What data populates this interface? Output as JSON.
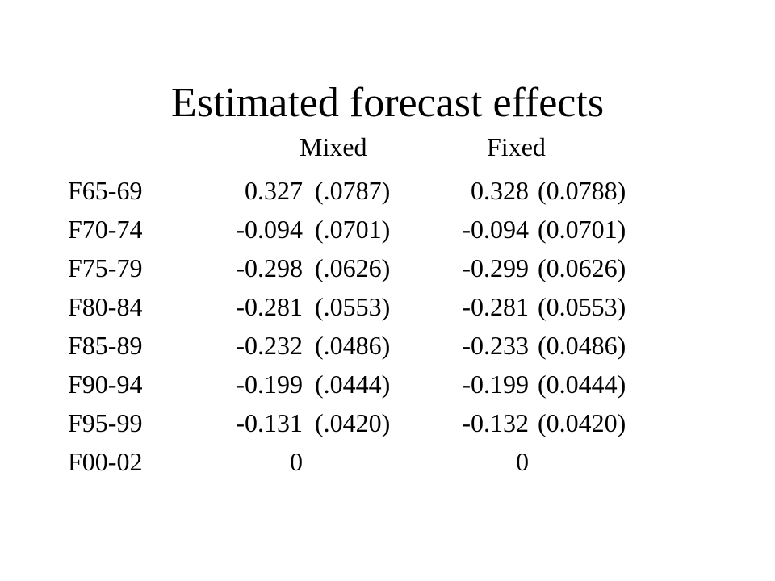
{
  "title": "Estimated forecast effects",
  "columns": {
    "mixed": "Mixed",
    "fixed": "Fixed"
  },
  "rows": [
    {
      "label": "F65-69",
      "mixed_est": "0.327",
      "mixed_se": "(.0787)",
      "fixed_est": "0.328",
      "fixed_se": "(0.0788)"
    },
    {
      "label": "F70-74",
      "mixed_est": "-0.094",
      "mixed_se": "(.0701)",
      "fixed_est": "-0.094",
      "fixed_se": "(0.0701)"
    },
    {
      "label": "F75-79",
      "mixed_est": "-0.298",
      "mixed_se": "(.0626)",
      "fixed_est": "-0.299",
      "fixed_se": "(0.0626)"
    },
    {
      "label": "F80-84",
      "mixed_est": "-0.281",
      "mixed_se": "(.0553)",
      "fixed_est": "-0.281",
      "fixed_se": "(0.0553)"
    },
    {
      "label": "F85-89",
      "mixed_est": "-0.232",
      "mixed_se": "(.0486)",
      "fixed_est": "-0.233",
      "fixed_se": "(0.0486)"
    },
    {
      "label": "F90-94",
      "mixed_est": "-0.199",
      "mixed_se": "(.0444)",
      "fixed_est": "-0.199",
      "fixed_se": "(0.0444)"
    },
    {
      "label": "F95-99",
      "mixed_est": "-0.131",
      "mixed_se": "(.0420)",
      "fixed_est": "-0.132",
      "fixed_se": "(0.0420)"
    },
    {
      "label": "F00-02",
      "mixed_est": "0",
      "mixed_se": "",
      "fixed_est": "0",
      "fixed_se": ""
    }
  ]
}
